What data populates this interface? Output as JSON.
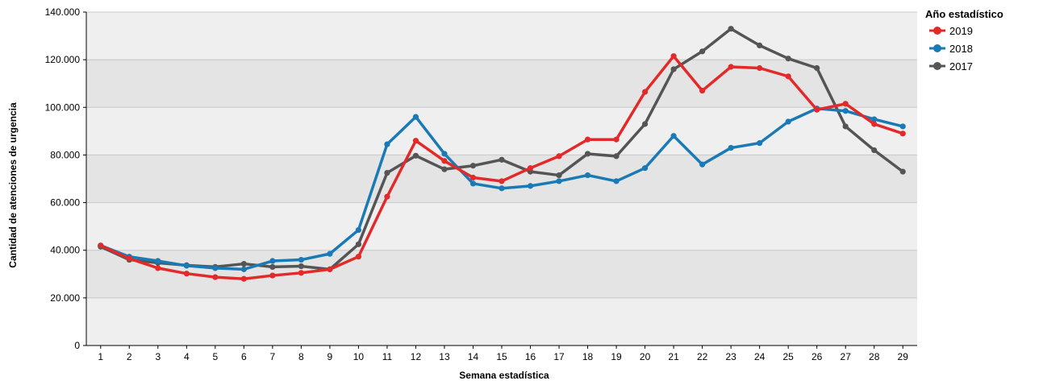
{
  "chart_data": {
    "type": "line",
    "title": "",
    "xlabel": "Semana estadística",
    "ylabel": "Cantidad de atenciones de urgencia",
    "x": [
      1,
      2,
      3,
      4,
      5,
      6,
      7,
      8,
      9,
      10,
      11,
      12,
      13,
      14,
      15,
      16,
      17,
      18,
      19,
      20,
      21,
      22,
      23,
      24,
      25,
      26,
      27,
      28,
      29
    ],
    "ylim": [
      0,
      140000
    ],
    "yticks": [
      0,
      20000,
      40000,
      60000,
      80000,
      100000,
      120000,
      140000
    ],
    "ytick_labels": [
      "0",
      "20.000",
      "40.000",
      "60.000",
      "80.000",
      "100.000",
      "120.000",
      "140.000"
    ],
    "grid": "horizontal",
    "background_bands": [
      "#e4e4e4",
      "#efefef"
    ],
    "legend": {
      "title": "Año estadístico",
      "position": "top-right"
    },
    "series": [
      {
        "name": "2019",
        "color": "#e32a2a",
        "values": [
          42000,
          36500,
          32500,
          30200,
          28700,
          28000,
          29400,
          30500,
          32000,
          37300,
          62500,
          86000,
          77500,
          70500,
          69000,
          74500,
          79500,
          86500,
          86500,
          106500,
          121500,
          107000,
          117000,
          116500,
          113000,
          99000,
          101500,
          93000,
          89000
        ]
      },
      {
        "name": "2018",
        "color": "#1a7ab5",
        "values": [
          42000,
          37300,
          35500,
          33500,
          32500,
          32000,
          35500,
          36000,
          38500,
          48500,
          84500,
          96000,
          80500,
          68000,
          66000,
          67000,
          69000,
          71500,
          69000,
          74500,
          88000,
          76000,
          83000,
          85000,
          94000,
          99500,
          98500,
          95000,
          92000
        ]
      },
      {
        "name": "2017",
        "color": "#555555",
        "values": [
          41500,
          36000,
          34700,
          33700,
          33000,
          34300,
          33000,
          33300,
          32000,
          42500,
          72500,
          79700,
          74000,
          75500,
          78000,
          73000,
          71500,
          80500,
          79500,
          93000,
          116000,
          123500,
          133000,
          126000,
          120500,
          116500,
          92000,
          82000,
          73000
        ]
      }
    ]
  }
}
